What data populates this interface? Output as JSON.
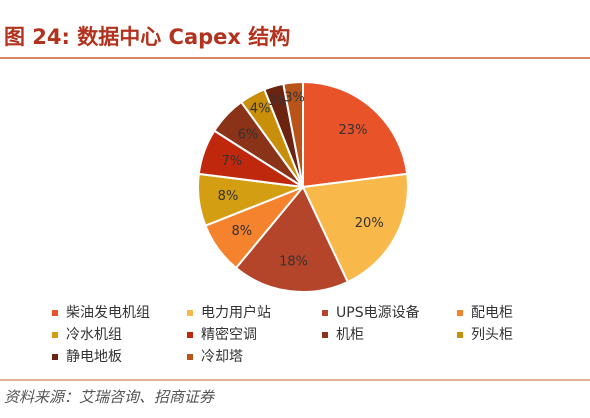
{
  "chart_data": {
    "type": "pie",
    "title": "图 24: 数据中心 Capex 结构",
    "source": "资料来源：艾瑞咨询、招商证券",
    "categories": [
      "柴油发电机组",
      "电力用户站",
      "UPS电源设备",
      "配电柜",
      "冷水机组",
      "精密空调",
      "机柜",
      "列头柜",
      "静电地板",
      "冷却塔"
    ],
    "values": [
      23,
      20,
      18,
      8,
      8,
      7,
      6,
      4,
      3,
      3
    ],
    "value_labels": [
      "23%",
      "20%",
      "18%",
      "8%",
      "8%",
      "7%",
      "6%",
      "4%",
      "3%",
      "3%"
    ],
    "colors": [
      "#e8532a",
      "#f9b84a",
      "#b5452a",
      "#f5822d",
      "#d49e12",
      "#c0280e",
      "#8b3318",
      "#c98f0a",
      "#6b2410",
      "#b8541a"
    ]
  }
}
